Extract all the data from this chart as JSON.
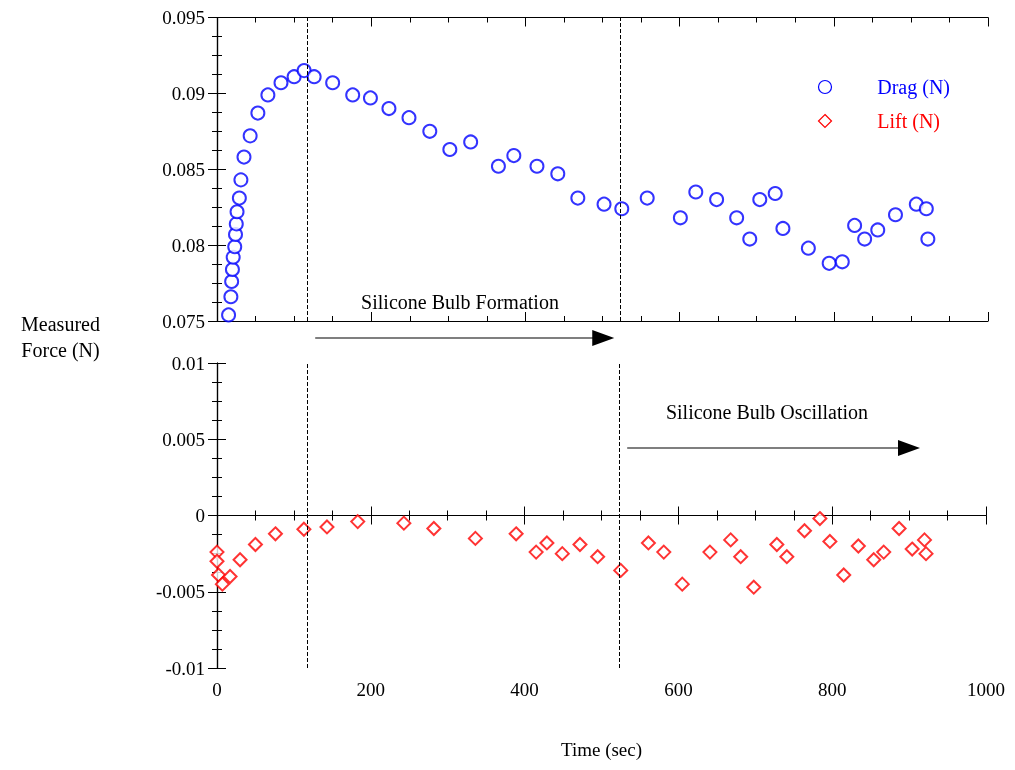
{
  "chart_data": [
    {
      "type": "scatter",
      "ylabel": "Measured Force (N)",
      "xlim": [
        0,
        1000
      ],
      "xticks": [
        0,
        200,
        400,
        600,
        800,
        1000
      ],
      "ylim": [
        0.075,
        0.095
      ],
      "yticks": [
        0.075,
        0.08,
        0.085,
        0.09,
        0.095
      ],
      "tick_labels": "y",
      "marker": "circle",
      "legend": "top right",
      "x": [
        15,
        18,
        19,
        20,
        21,
        23,
        24,
        25,
        26,
        29,
        31,
        35,
        43,
        53,
        66,
        83,
        100,
        113,
        126,
        150,
        176,
        199,
        223,
        249,
        276,
        302,
        329,
        365,
        385,
        415,
        442,
        468,
        502,
        525,
        558,
        601,
        621,
        648,
        674,
        691,
        704,
        724,
        734,
        767,
        794,
        811,
        827,
        840,
        857,
        880,
        907,
        920,
        922
      ],
      "series": [
        {
          "name": "Drag (N)",
          "color": "#0000ff",
          "values": [
            0.0754,
            0.0766,
            0.0776,
            0.0784,
            0.0792,
            0.0799,
            0.0807,
            0.0814,
            0.0822,
            0.0831,
            0.0843,
            0.0858,
            0.0872,
            0.0887,
            0.0899,
            0.0907,
            0.0911,
            0.0915,
            0.0911,
            0.0907,
            0.0899,
            0.0897,
            0.089,
            0.0884,
            0.0875,
            0.0863,
            0.0868,
            0.0852,
            0.0859,
            0.0852,
            0.0847,
            0.0831,
            0.0827,
            0.0824,
            0.0831,
            0.0818,
            0.0835,
            0.083,
            0.0818,
            0.0804,
            0.083,
            0.0834,
            0.0811,
            0.0798,
            0.0788,
            0.0789,
            0.0813,
            0.0804,
            0.081,
            0.082,
            0.0827,
            0.0824,
            0.0804
          ]
        }
      ],
      "ref_lines": [
        {
          "axis": "x",
          "value": 117,
          "line_style": "dashed",
          "color": "#000000"
        },
        {
          "axis": "x",
          "value": 523,
          "line_style": "dashed",
          "color": "#000000"
        }
      ],
      "annotations": [
        "Silicone Bulb Formation"
      ]
    },
    {
      "type": "scatter",
      "xlabel": "Time (sec)",
      "xlim": [
        0,
        1000
      ],
      "xticks": [
        0,
        200,
        400,
        600,
        800,
        1000
      ],
      "ylim": [
        -0.01,
        0.01
      ],
      "yticks": [
        -0.01,
        -0.005,
        0,
        0.005,
        0.01
      ],
      "marker": "diamond",
      "x": [
        0,
        0,
        2,
        7,
        17,
        30,
        50,
        76,
        113,
        143,
        183,
        243,
        282,
        336,
        389,
        415,
        429,
        449,
        472,
        495,
        525,
        561,
        581,
        605,
        641,
        668,
        681,
        698,
        728,
        741,
        764,
        784,
        797,
        815,
        834,
        854,
        867,
        887,
        904,
        920,
        922
      ],
      "series": [
        {
          "name": "Lift (N)",
          "color": "#ff0000",
          "values": [
            -0.0024,
            -0.003,
            -0.0039,
            -0.0045,
            -0.004,
            -0.0029,
            -0.0019,
            -0.0012,
            -0.0009,
            -0.00075,
            -0.0004,
            -0.0005,
            -0.00085,
            -0.0015,
            -0.0012,
            -0.0024,
            -0.0018,
            -0.0025,
            -0.0019,
            -0.0027,
            -0.0036,
            -0.0018,
            -0.0024,
            -0.0045,
            -0.0024,
            -0.0016,
            -0.0027,
            -0.0047,
            -0.0019,
            -0.0027,
            -0.001,
            -0.0002,
            -0.0017,
            -0.0039,
            -0.002,
            -0.0029,
            -0.0024,
            -0.00085,
            -0.0022,
            -0.0016,
            -0.0025
          ]
        }
      ],
      "ref_lines": [
        {
          "axis": "x",
          "value": 117,
          "line_style": "dashed",
          "color": "#000000"
        },
        {
          "axis": "x",
          "value": 523,
          "line_style": "dashed",
          "color": "#000000"
        }
      ],
      "annotations": [
        "Silicone Bulb Oscillation"
      ]
    }
  ]
}
